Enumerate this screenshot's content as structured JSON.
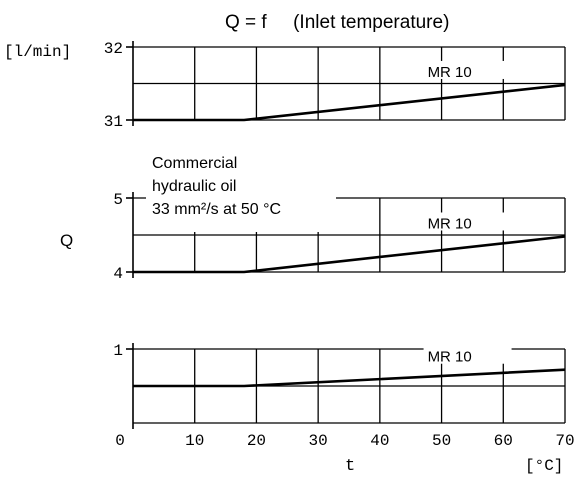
{
  "chart_data": {
    "type": "line",
    "title": "Q = f     (Inlet temperature)",
    "ylabel": "Q",
    "yunit": "[l/min]",
    "xlabel": "t",
    "xunit": "[°C]",
    "x_ticks": [
      "0",
      "10",
      "20",
      "30",
      "40",
      "50",
      "60",
      "70"
    ],
    "xlim": [
      0,
      70
    ],
    "grid": true,
    "annotation": {
      "lines": [
        "Commercial",
        "hydraulic oil",
        "33 mm²/s at 50 °C"
      ]
    },
    "panels": [
      {
        "ylim": [
          31,
          32
        ],
        "y_ticks": [
          {
            "value": 32,
            "label": "32"
          },
          {
            "value": 31,
            "label": "31"
          }
        ],
        "series": [
          {
            "name": "MR 10",
            "x": [
              0,
              18,
              70
            ],
            "y": [
              31,
              31,
              31.48
            ]
          }
        ]
      },
      {
        "ylim": [
          4,
          5
        ],
        "y_ticks": [
          {
            "value": 5,
            "label": "5"
          },
          {
            "value": 4,
            "label": "4"
          }
        ],
        "series": [
          {
            "name": "MR 10",
            "x": [
              0,
              18,
              70
            ],
            "y": [
              4,
              4,
              4.48
            ]
          }
        ]
      },
      {
        "ylim": [
          0,
          1
        ],
        "y_ticks": [
          {
            "value": 1,
            "label": "1"
          },
          {
            "value": 0,
            "label": "0"
          }
        ],
        "series": [
          {
            "name": "MR 10",
            "x": [
              0,
              18,
              70
            ],
            "y": [
              0.5,
              0.5,
              0.72
            ]
          }
        ]
      }
    ]
  }
}
